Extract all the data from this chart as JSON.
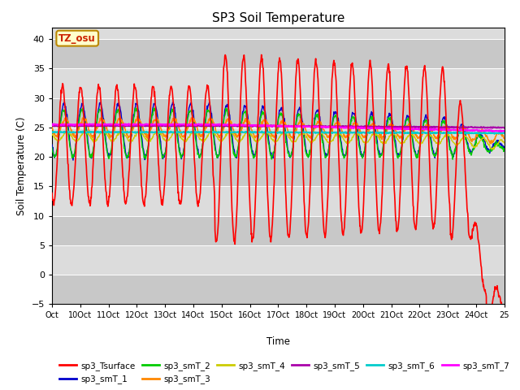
{
  "title": "SP3 Soil Temperature",
  "xlabel": "Time",
  "ylabel": "Soil Temperature (C)",
  "ylim": [
    -5,
    42
  ],
  "yticks": [
    -5,
    0,
    5,
    10,
    15,
    20,
    25,
    30,
    35,
    40
  ],
  "xtick_labels": [
    "Oct",
    "10Oct",
    "11Oct",
    "12Oct",
    "13Oct",
    "14Oct",
    "15Oct",
    "16Oct",
    "17Oct",
    "18Oct",
    "19Oct",
    "20Oct",
    "21Oct",
    "22Oct",
    "23Oct",
    "24Oct",
    "25"
  ],
  "annotation_text": "TZ_osu",
  "annotation_bg": "#FFFFCC",
  "annotation_border": "#BB8800",
  "series_colors": {
    "sp3_Tsurface": "#FF0000",
    "sp3_smT_1": "#0000CC",
    "sp3_smT_2": "#00CC00",
    "sp3_smT_3": "#FF8800",
    "sp3_smT_4": "#CCCC00",
    "sp3_smT_5": "#AA00AA",
    "sp3_smT_6": "#00CCCC",
    "sp3_smT_7": "#FF00FF"
  },
  "band_colors": [
    "#D8D8D8",
    "#E8E8E8"
  ],
  "n_days": 25,
  "start_day": 9
}
